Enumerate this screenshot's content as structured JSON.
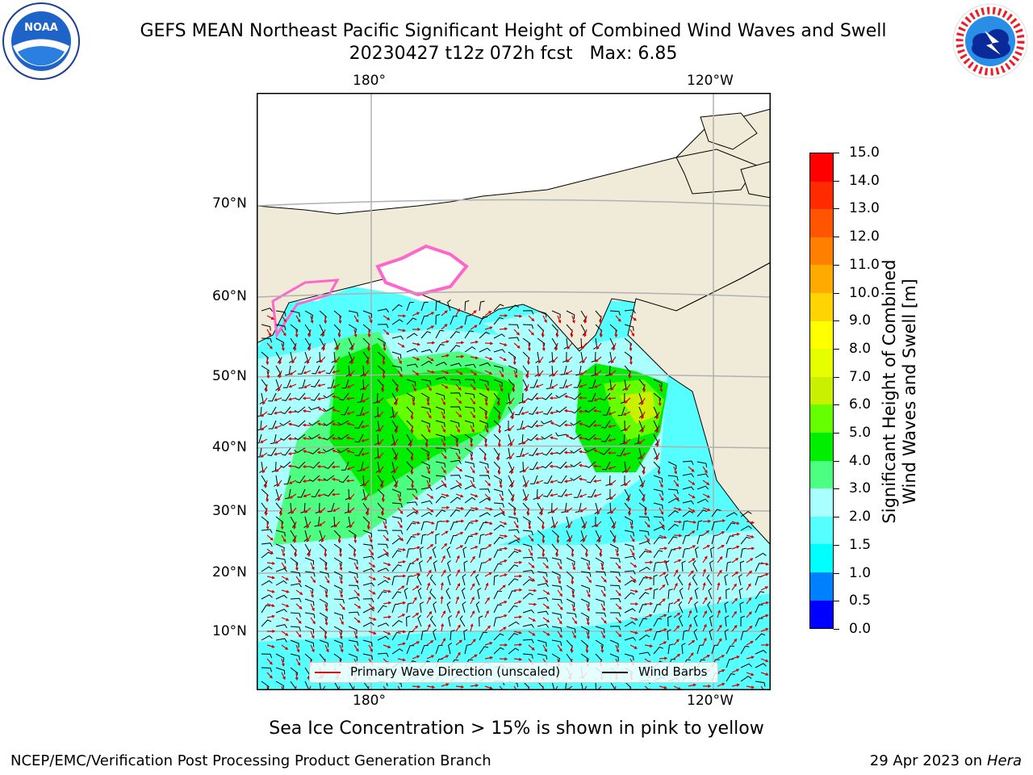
{
  "title": {
    "line1": "GEFS MEAN Northeast Pacific Significant Height of Combined Wind Waves and Swell",
    "line2": "20230427 t12z 072h fcst   Max: 6.85"
  },
  "logos": {
    "left": {
      "icon": "noaa-logo-icon",
      "text": "NOAA"
    },
    "right": {
      "icon": "nws-logo-icon",
      "text": "NATIONAL WEATHER SERVICE"
    }
  },
  "map": {
    "lon_labels": [
      "180°",
      "120°W"
    ],
    "lat_labels": [
      "70°N",
      "60°N",
      "50°N",
      "40°N",
      "30°N",
      "20°N",
      "10°N"
    ],
    "colors": {
      "land": "#efebd8",
      "coast": "#000000",
      "grid": "#b0b0b0",
      "wind_barb": "#000000",
      "wave_dir": "#e00000",
      "sea_ice": "#ff66cc"
    }
  },
  "legend": {
    "wave_label": "Primary Wave Direction (unscaled)",
    "barb_label": "Wind Barbs"
  },
  "colorbar": {
    "title_line1": "Significant Height of Combined",
    "title_line2": "Wind Waves and Swell [m]",
    "ticks": [
      "15.0",
      "14.0",
      "13.0",
      "12.0",
      "11.0",
      "10.0",
      "9.0",
      "8.0",
      "7.0",
      "6.0",
      "5.0",
      "4.0",
      "3.0",
      "2.0",
      "1.5",
      "1.0",
      "0.5",
      "0.0"
    ],
    "colors": [
      "#ff0000",
      "#ff2a00",
      "#ff5500",
      "#ff8000",
      "#ffaa00",
      "#ffd400",
      "#ffff00",
      "#e6ff00",
      "#c8f000",
      "#66ff00",
      "#00ee00",
      "#4cff80",
      "#aaffff",
      "#55ffff",
      "#00ffff",
      "#0080ff",
      "#0000ff"
    ]
  },
  "chart_data": {
    "type": "heatmap",
    "field": "Significant Height of Combined Wind Waves and Swell",
    "units": "m",
    "max": 6.85,
    "scale_range": [
      0.0,
      15.0
    ],
    "regions": [
      {
        "area": "central North Pacific ~35-55°N, 175°E-150°W",
        "height_range_m": [
          3.0,
          6.0
        ]
      },
      {
        "area": "off Pacific Northwest coast ~42-50°N, 125-135°W",
        "height_range_m": [
          4.0,
          6.85
        ]
      },
      {
        "area": "subtropical/tropical Pacific 5-30°N",
        "height_range_m": [
          1.5,
          3.0
        ]
      }
    ]
  },
  "footer": {
    "caption": "Sea Ice Concentration > 15% is shown in pink to yellow",
    "left": "NCEP/EMC/Verification Post Processing Product Generation Branch",
    "right_date": "29 Apr 2023 on ",
    "right_host": "Hera"
  }
}
